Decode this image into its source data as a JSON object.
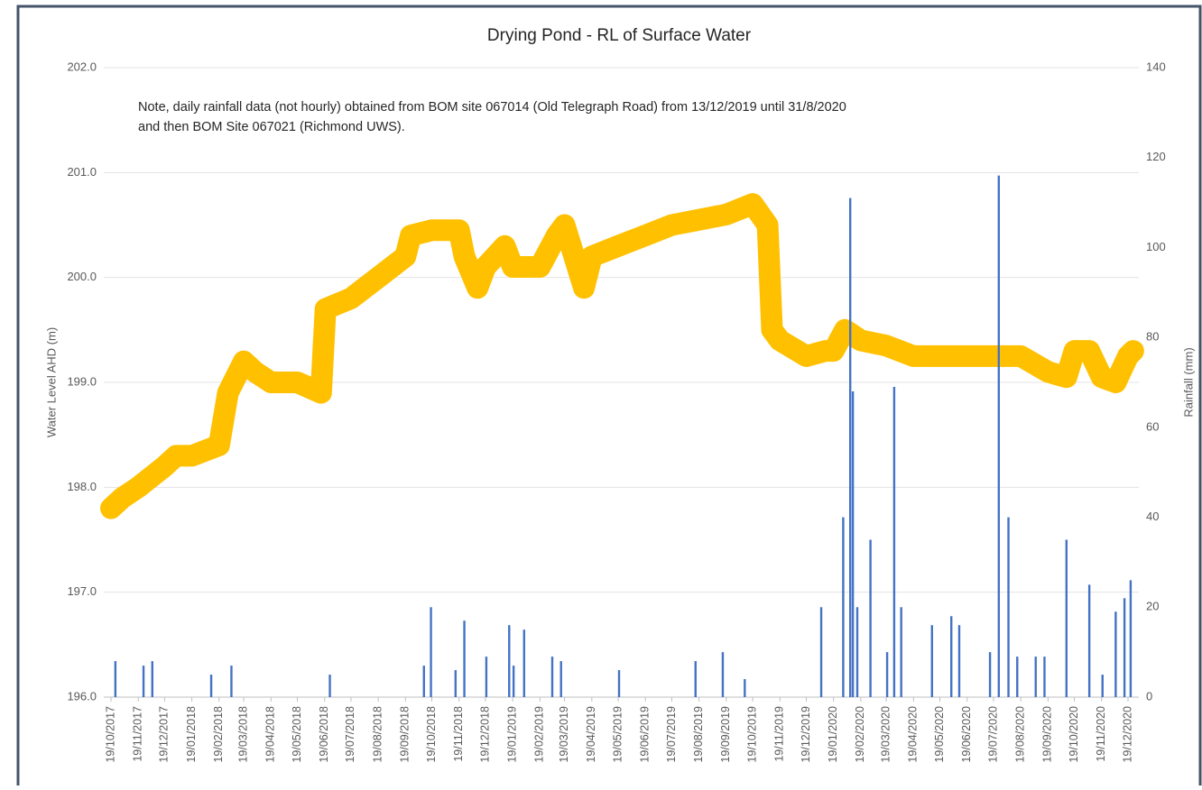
{
  "chart_data": {
    "type": "line",
    "title": "Drying Pond - RL of Surface Water",
    "note": [
      "Note, daily rainfall data (not hourly) obtained from BOM site 067014 (Old Telegraph Road) from 13/12/2019 until 31/8/2020",
      "and then BOM Site 067021 (Richmond UWS)."
    ],
    "y_label": "Water Level AHD (m)",
    "y2_label": "Rainfall (mm)",
    "categories": [
      "19/10/2017",
      "19/11/2017",
      "19/12/2017",
      "19/01/2018",
      "19/02/2018",
      "19/03/2018",
      "19/04/2018",
      "19/05/2018",
      "19/06/2018",
      "19/07/2018",
      "19/08/2018",
      "19/09/2018",
      "19/10/2018",
      "19/11/2018",
      "19/12/2018",
      "19/01/2019",
      "19/02/2019",
      "19/03/2019",
      "19/04/2019",
      "19/05/2019",
      "19/06/2019",
      "19/07/2019",
      "19/08/2019",
      "19/09/2019",
      "19/10/2019",
      "19/11/2019",
      "19/12/2019",
      "19/01/2020",
      "19/02/2020",
      "19/03/2020",
      "19/04/2020",
      "19/05/2020",
      "19/06/2020",
      "19/07/2020",
      "19/08/2020",
      "19/09/2020",
      "19/10/2020",
      "19/11/2020",
      "19/12/2020"
    ],
    "ylim": [
      196,
      202
    ],
    "yticks": [
      {
        "value": 196,
        "label": "196.0"
      },
      {
        "value": 197,
        "label": "197.0"
      },
      {
        "value": 198,
        "label": "198.0"
      },
      {
        "value": 199,
        "label": "199.0"
      },
      {
        "value": 200,
        "label": "200.0"
      },
      {
        "value": 201,
        "label": "201.0"
      },
      {
        "value": 202,
        "label": "202.0"
      }
    ],
    "y2lim": [
      0,
      140
    ],
    "y2ticks": [
      0,
      20,
      40,
      60,
      80,
      100,
      120,
      140
    ],
    "grid": true,
    "series": [
      {
        "type": "line",
        "color": "#FFC000",
        "x": [
          "19/10/2017",
          "01/11/2017",
          "19/11/2017",
          "19/12/2017",
          "01/01/2018",
          "19/01/2018",
          "19/02/2018",
          "01/03/2018",
          "19/03/2018",
          "01/04/2018",
          "19/04/2018",
          "19/05/2018",
          "15/06/2018",
          "20/06/2018",
          "19/07/2018",
          "19/08/2018",
          "19/09/2018",
          "25/09/2018",
          "19/10/2018",
          "19/11/2018",
          "25/11/2018",
          "10/12/2018",
          "19/12/2018",
          "10/01/2019",
          "19/01/2019",
          "19/02/2019",
          "10/03/2019",
          "19/03/2019",
          "10/04/2019",
          "19/04/2019",
          "19/05/2019",
          "19/06/2019",
          "19/07/2019",
          "19/08/2019",
          "19/09/2019",
          "19/10/2019",
          "05/11/2019",
          "10/11/2019",
          "19/11/2019",
          "19/12/2019",
          "10/01/2020",
          "19/01/2020",
          "01/02/2020",
          "19/02/2020",
          "19/03/2020",
          "19/04/2020",
          "19/05/2020",
          "19/06/2020",
          "19/07/2020",
          "19/08/2020",
          "19/09/2020",
          "10/10/2020",
          "19/10/2020",
          "05/11/2020",
          "19/11/2020",
          "05/12/2020",
          "19/12/2020",
          "25/12/2020"
        ],
        "values": [
          197.8,
          197.9,
          198.0,
          198.2,
          198.3,
          198.3,
          198.4,
          198.9,
          199.2,
          199.1,
          199.0,
          199.0,
          198.9,
          199.7,
          199.8,
          200.0,
          200.2,
          200.4,
          200.45,
          200.45,
          200.2,
          199.9,
          200.1,
          200.3,
          200.1,
          200.1,
          200.4,
          200.5,
          199.9,
          200.2,
          200.3,
          200.4,
          200.5,
          200.55,
          200.6,
          200.7,
          200.5,
          199.5,
          199.4,
          199.25,
          199.3,
          199.3,
          199.5,
          199.4,
          199.35,
          199.25,
          199.25,
          199.25,
          199.25,
          199.25,
          199.1,
          199.05,
          199.3,
          199.3,
          199.05,
          199.0,
          199.25,
          199.3
        ]
      },
      {
        "type": "bar",
        "axis": "y2",
        "color": "#4472C4",
        "x": [
          "24/10/2017",
          "25/11/2017",
          "05/12/2017",
          "10/02/2018",
          "05/03/2018",
          "25/06/2018",
          "10/10/2018",
          "18/10/2018",
          "15/11/2018",
          "25/11/2018",
          "20/12/2018",
          "15/01/2019",
          "20/01/2019",
          "01/02/2019",
          "05/03/2019",
          "15/03/2019",
          "20/05/2019",
          "15/08/2019",
          "15/09/2019",
          "10/10/2019",
          "05/01/2020",
          "30/01/2020",
          "07/02/2020",
          "10/02/2020",
          "15/02/2020",
          "01/03/2020",
          "20/03/2020",
          "28/03/2020",
          "05/04/2020",
          "10/05/2020",
          "01/06/2020",
          "10/06/2020",
          "15/07/2020",
          "25/07/2020",
          "05/08/2020",
          "15/08/2020",
          "05/09/2020",
          "15/09/2020",
          "10/10/2020",
          "05/11/2020",
          "20/11/2020",
          "05/12/2020",
          "15/12/2020",
          "22/12/2020"
        ],
        "values": [
          8,
          7,
          8,
          5,
          7,
          5,
          7,
          20,
          6,
          17,
          9,
          16,
          7,
          15,
          9,
          8,
          6,
          8,
          10,
          4,
          20,
          40,
          111,
          68,
          20,
          35,
          10,
          69,
          20,
          16,
          18,
          16,
          10,
          116,
          40,
          9,
          9,
          9,
          35,
          25,
          5,
          19,
          22,
          26
        ]
      }
    ]
  }
}
